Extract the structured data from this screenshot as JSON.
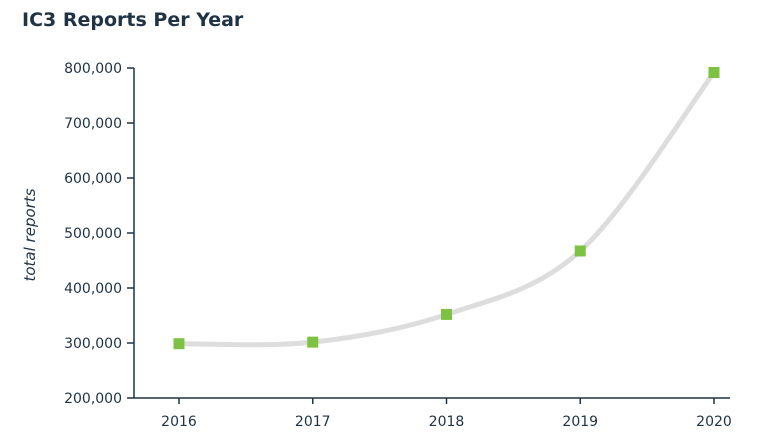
{
  "chart_data": {
    "type": "line",
    "title": "IC3 Reports Per Year",
    "xlabel": "",
    "ylabel": "total reports",
    "categories": [
      "2016",
      "2017",
      "2018",
      "2019",
      "2020"
    ],
    "series": [
      {
        "values": [
          298728,
          301580,
          351937,
          467361,
          791790
        ]
      }
    ],
    "ylim": [
      200000,
      800000
    ],
    "yticks": [
      "800,000",
      "700,000",
      "600,000",
      "500,000",
      "400,000",
      "300,000",
      "200,000"
    ],
    "grid": false,
    "line_color": "#dddddd",
    "marker_color": "#7dc242",
    "axis_color": "#1f3344"
  }
}
